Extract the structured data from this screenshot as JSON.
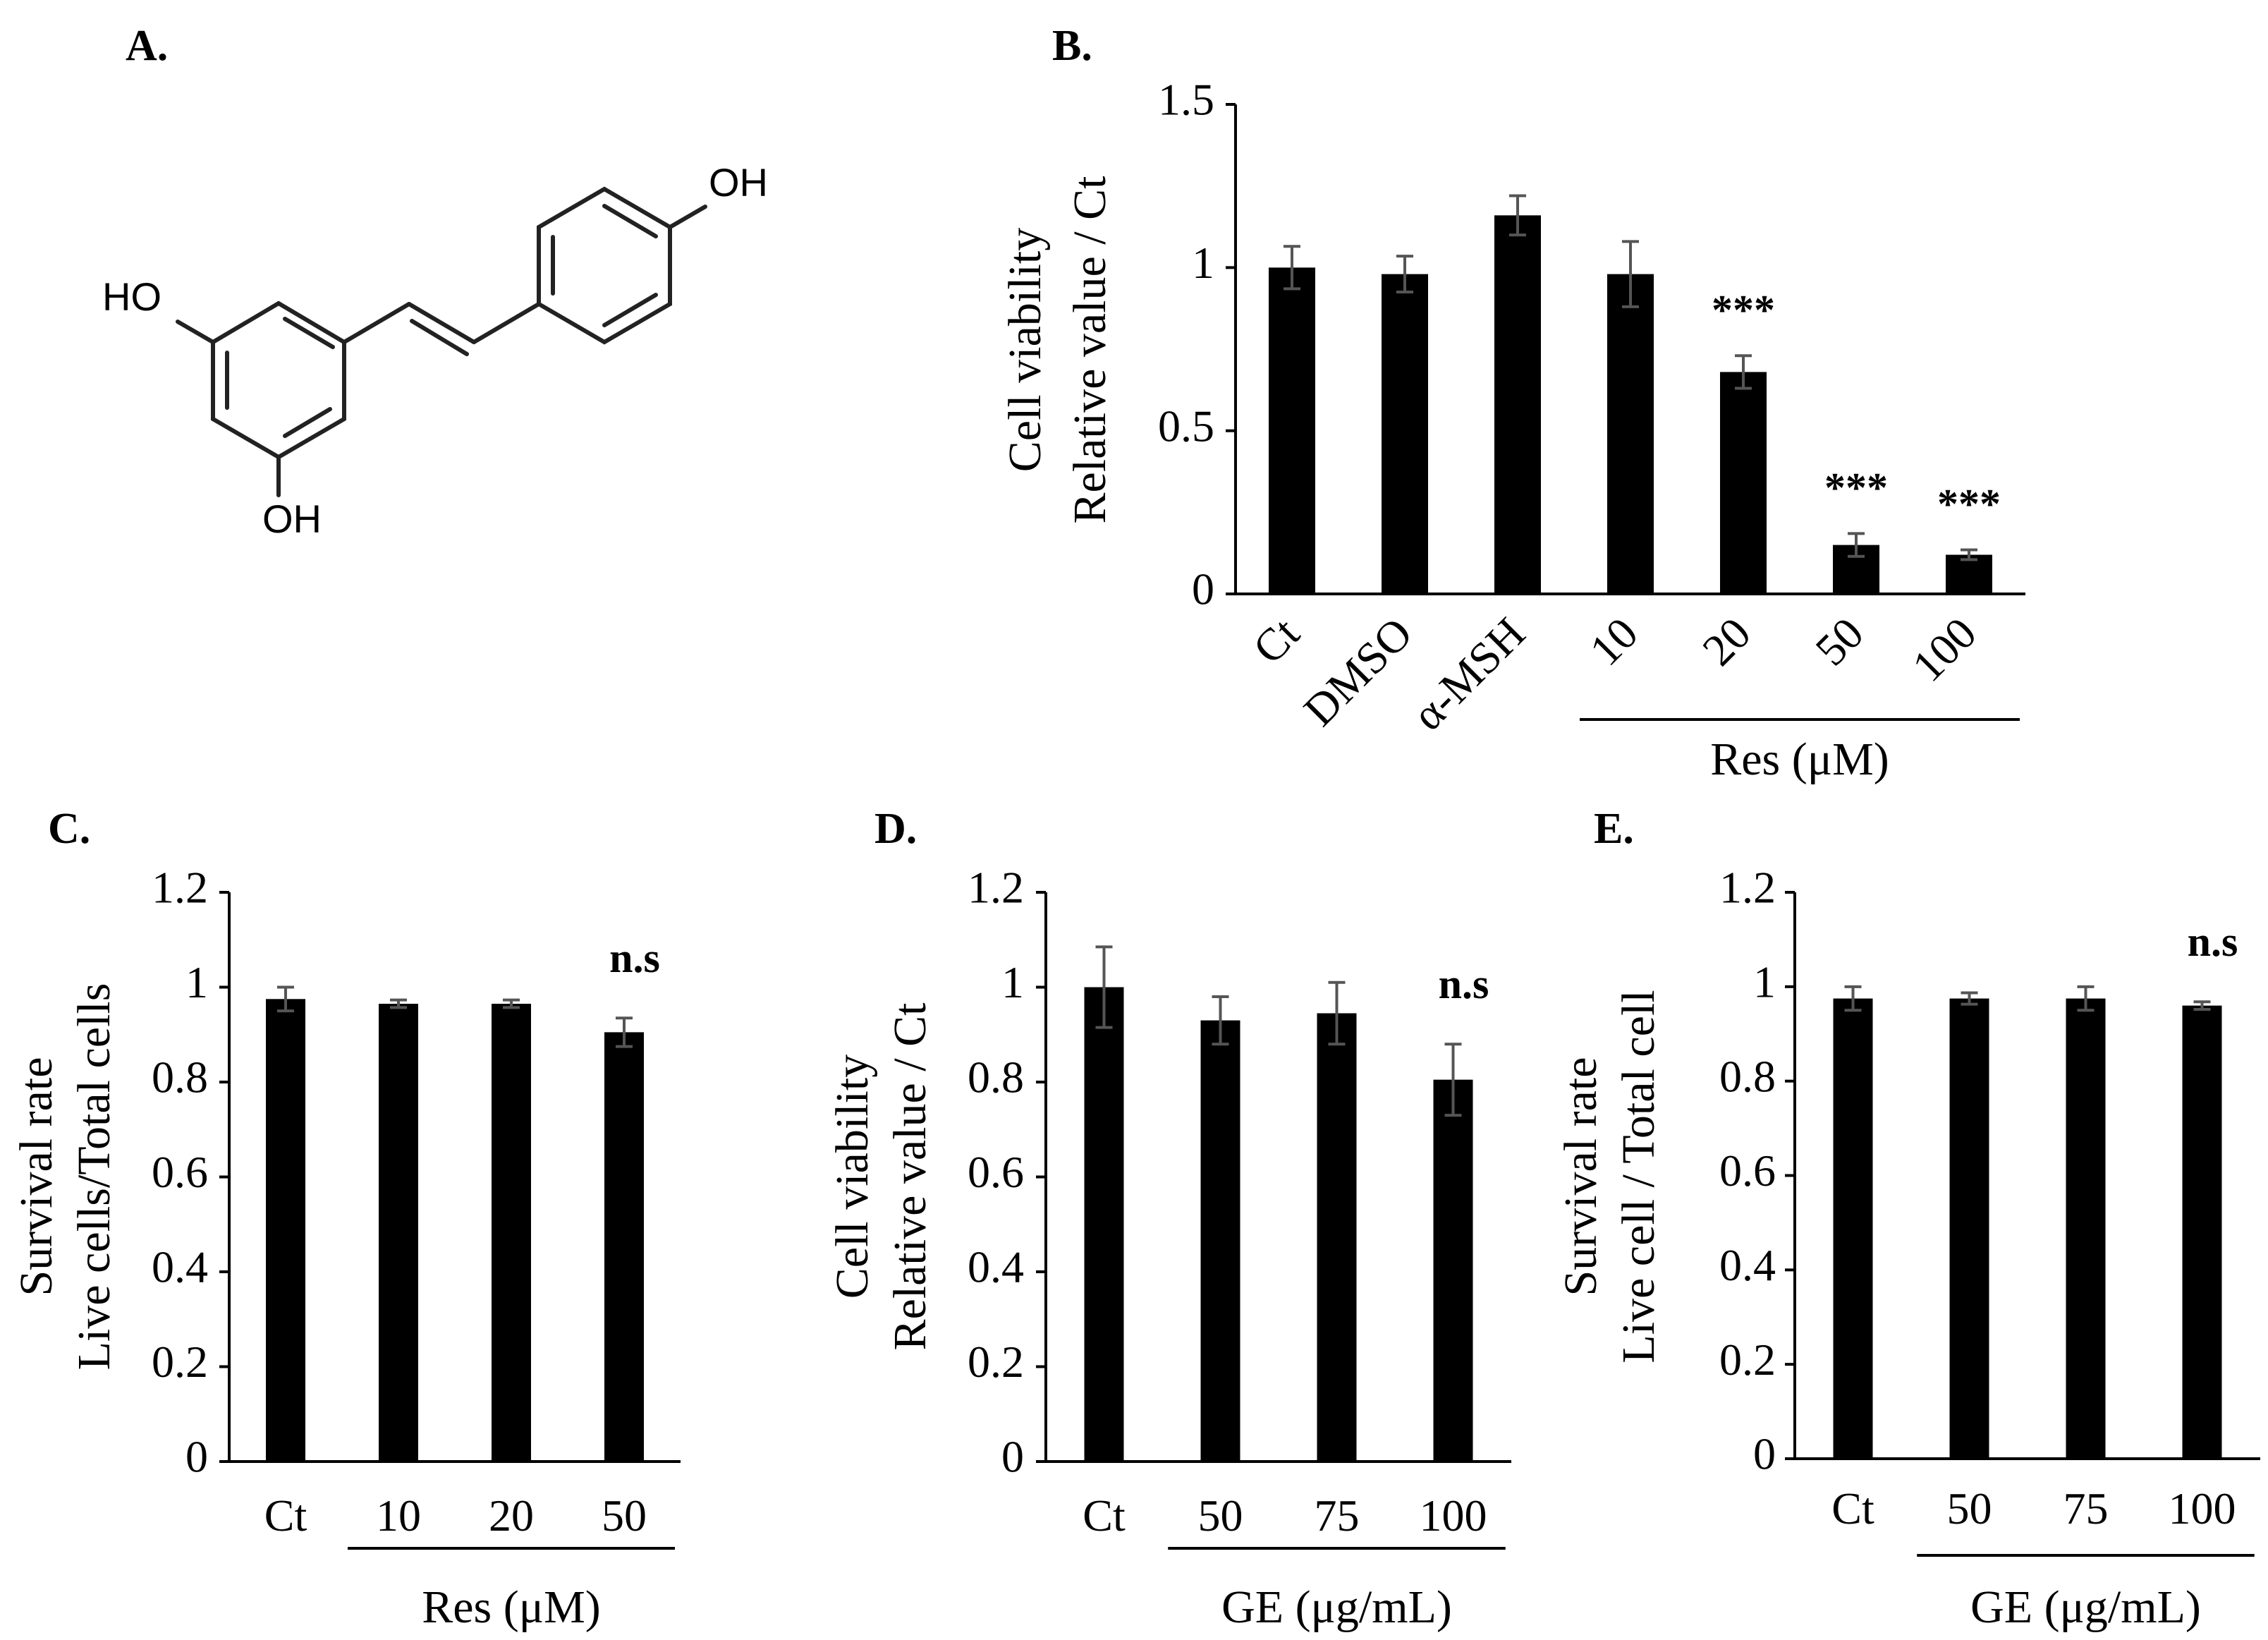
{
  "panels": {
    "A": {
      "label": "A.",
      "molecule": {
        "name": "resveratrol-structure",
        "labels": [
          "OH",
          "HO",
          "OH"
        ]
      }
    }
  },
  "chart_data": [
    {
      "id": "B",
      "panel_label": "B.",
      "type": "bar",
      "ylabel_lines": [
        "Cell viability",
        "Relative value / Ct"
      ],
      "ylim": [
        0,
        1.5
      ],
      "yticks": [
        0,
        0.5,
        1,
        1.5
      ],
      "ytick_labels": [
        "0",
        "0.5",
        "1",
        "1.5"
      ],
      "categories": [
        "Ct",
        "DMSO",
        "α-MSH",
        "10",
        "20",
        "50",
        "100"
      ],
      "values": [
        1.0,
        0.98,
        1.16,
        0.98,
        0.68,
        0.15,
        0.12
      ],
      "errors": [
        0.065,
        0.055,
        0.06,
        0.1,
        0.05,
        0.035,
        0.015
      ],
      "significance": [
        "",
        "",
        "",
        "",
        "***",
        "***",
        "***"
      ],
      "group": {
        "label": "Res (μM)",
        "from": 3,
        "to": 6
      },
      "rotate_labels": true,
      "bar_color": "#000000",
      "error_color": "#555555"
    },
    {
      "id": "C",
      "panel_label": "C.",
      "type": "bar",
      "ylabel_lines": [
        "Survival rate",
        "Live cells/Total cells"
      ],
      "ylim": [
        0,
        1.2
      ],
      "yticks": [
        0,
        0.2,
        0.4,
        0.6,
        0.8,
        1,
        1.2
      ],
      "ytick_labels": [
        "0",
        "0.2",
        "0.4",
        "0.6",
        "0.8",
        "1",
        "1.2"
      ],
      "categories": [
        "Ct",
        "10",
        "20",
        "50"
      ],
      "values": [
        0.975,
        0.965,
        0.965,
        0.905
      ],
      "errors": [
        0.025,
        0.008,
        0.008,
        0.03
      ],
      "significance": [
        "",
        "",
        "",
        "n.s"
      ],
      "group": {
        "label": "Res (μM)",
        "from": 1,
        "to": 3
      },
      "rotate_labels": false,
      "bar_color": "#000000",
      "error_color": "#555555"
    },
    {
      "id": "D",
      "panel_label": "D.",
      "type": "bar",
      "ylabel_lines": [
        "Cell viability",
        "Relative value / Ct"
      ],
      "ylim": [
        0,
        1.2
      ],
      "yticks": [
        0,
        0.2,
        0.4,
        0.6,
        0.8,
        1,
        1.2
      ],
      "ytick_labels": [
        "0",
        "0.2",
        "0.4",
        "0.6",
        "0.8",
        "1",
        "1.2"
      ],
      "categories": [
        "Ct",
        "50",
        "75",
        "100"
      ],
      "values": [
        1.0,
        0.93,
        0.945,
        0.805
      ],
      "errors": [
        0.085,
        0.05,
        0.065,
        0.075
      ],
      "significance": [
        "",
        "",
        "",
        "n.s"
      ],
      "group": {
        "label": "GE (μg/mL)",
        "from": 1,
        "to": 3
      },
      "rotate_labels": false,
      "bar_color": "#000000",
      "error_color": "#555555"
    },
    {
      "id": "E",
      "panel_label": "E.",
      "type": "bar",
      "ylabel_lines": [
        "Survival rate",
        "Live cell / Total cell"
      ],
      "ylim": [
        0,
        1.2
      ],
      "yticks": [
        0,
        0.2,
        0.4,
        0.6,
        0.8,
        1,
        1.2
      ],
      "ytick_labels": [
        "0",
        "0.2",
        "0.4",
        "0.6",
        "0.8",
        "1",
        "1.2"
      ],
      "categories": [
        "Ct",
        "50",
        "75",
        "100"
      ],
      "values": [
        0.975,
        0.975,
        0.975,
        0.96
      ],
      "errors": [
        0.025,
        0.012,
        0.025,
        0.008
      ],
      "significance": [
        "",
        "",
        "",
        "n.s"
      ],
      "group": {
        "label": "GE (μg/mL)",
        "from": 1,
        "to": 3
      },
      "rotate_labels": false,
      "bar_color": "#000000",
      "error_color": "#555555"
    }
  ]
}
